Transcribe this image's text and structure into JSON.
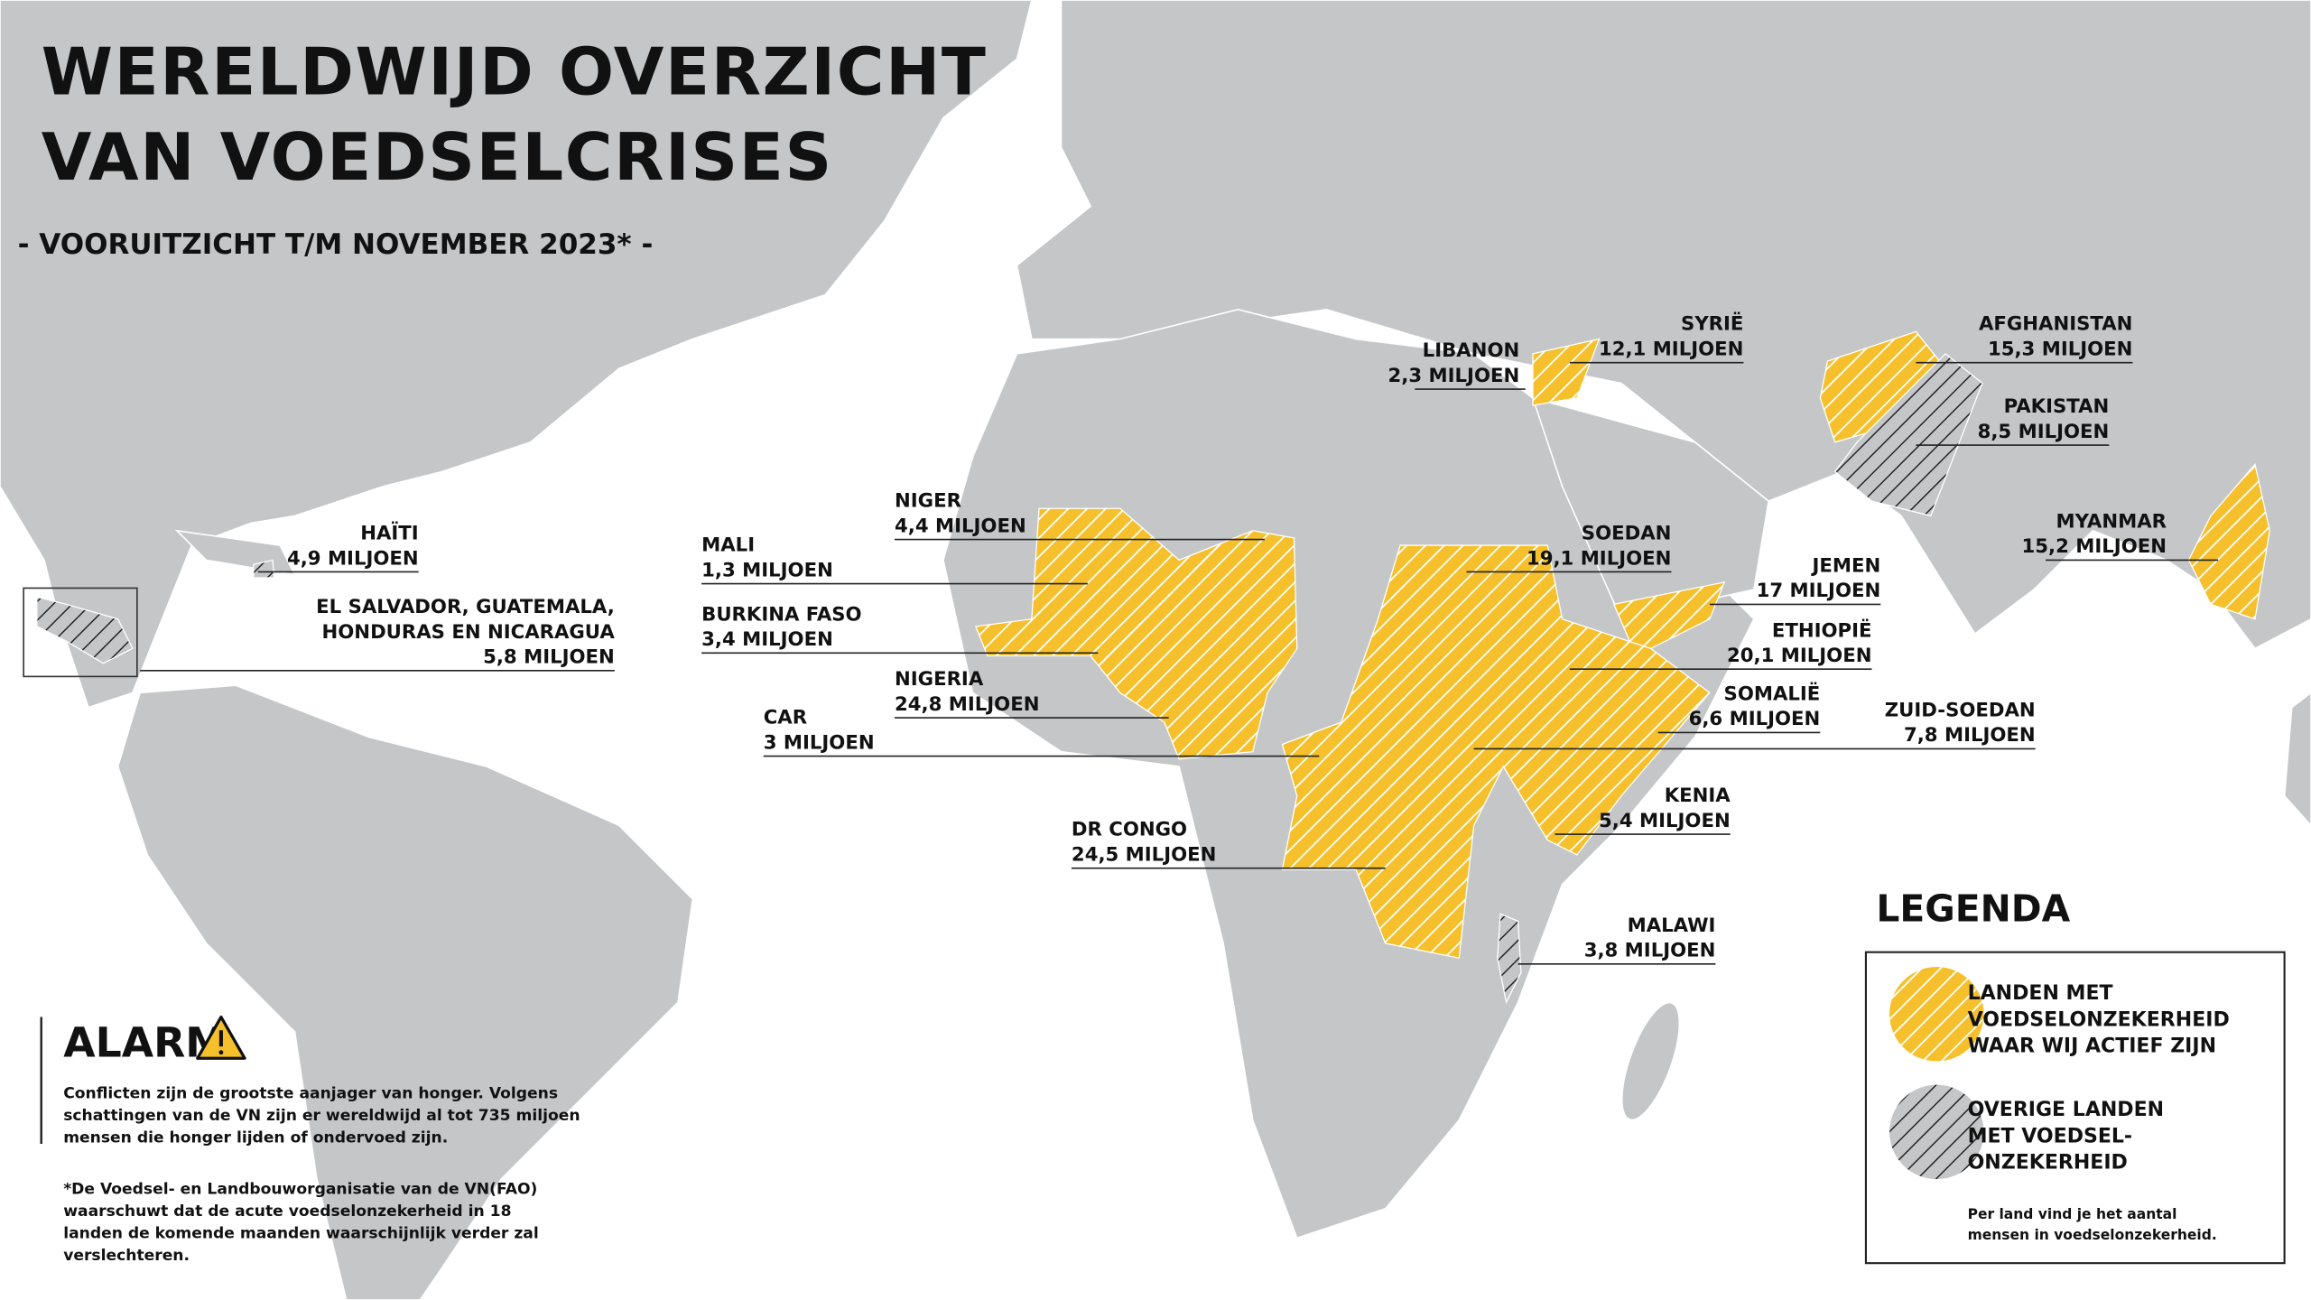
{
  "title": {
    "lines": [
      "WERELDWIJD OVERZICHT",
      "VAN VOEDSELCRISES"
    ]
  },
  "subtitle": "- VOORUITZICHT T/M NOVEMBER 2023* -",
  "countries": [
    {
      "name": [
        "HAÏTI"
      ],
      "amount": "4,9 MILJOEN"
    },
    {
      "name": [
        "EL SALVADOR, GUATEMALA,",
        "HONDURAS EN NICARAGUA"
      ],
      "amount": "5,8 MILJOEN"
    },
    {
      "name": [
        "NIGER"
      ],
      "amount": "4,4 MILJOEN"
    },
    {
      "name": [
        "MALI"
      ],
      "amount": "1,3 MILJOEN"
    },
    {
      "name": [
        "BURKINA FASO"
      ],
      "amount": "3,4 MILJOEN"
    },
    {
      "name": [
        "NIGERIA"
      ],
      "amount": "24,8 MILJOEN"
    },
    {
      "name": [
        "CAR"
      ],
      "amount": "3 MILJOEN"
    },
    {
      "name": [
        "DR CONGO"
      ],
      "amount": "24,5 MILJOEN"
    },
    {
      "name": [
        "LIBANON"
      ],
      "amount": "2,3 MILJOEN"
    },
    {
      "name": [
        "SYRIË"
      ],
      "amount": "12,1 MILJOEN"
    },
    {
      "name": [
        "AFGHANISTAN"
      ],
      "amount": "15,3 MILJOEN"
    },
    {
      "name": [
        "PAKISTAN"
      ],
      "amount": "8,5 MILJOEN"
    },
    {
      "name": [
        "MYANMAR"
      ],
      "amount": "15,2 MILJOEN"
    },
    {
      "name": [
        "SOEDAN"
      ],
      "amount": "19,1 MILJOEN"
    },
    {
      "name": [
        "JEMEN"
      ],
      "amount": "17 MILJOEN"
    },
    {
      "name": [
        "ETHIOPIË"
      ],
      "amount": "20,1 MILJOEN"
    },
    {
      "name": [
        "SOMALIË"
      ],
      "amount": "6,6 MILJOEN"
    },
    {
      "name": [
        "ZUID-SOEDAN"
      ],
      "amount": "7,8 MILJOEN"
    },
    {
      "name": [
        "KENIA"
      ],
      "amount": "5,4 MILJOEN"
    },
    {
      "name": [
        "MALAWI"
      ],
      "amount": "3,8 MILJOEN"
    }
  ],
  "alarm": {
    "heading": "ALARM",
    "body": [
      "Conflicten zijn de grootste aanjager van honger. Volgens",
      "schattingen van de VN zijn er wereldwijd al tot 735 miljoen",
      "mensen die honger lijden of ondervoed zijn."
    ]
  },
  "footnote": [
    "*De Voedsel- en Landbouworganisatie van de VN(FAO)",
    "waarschuwt dat de acute voedselonzekerheid in 18",
    "landen de komende maanden waarschijnlijk verder zal",
    "verslechteren."
  ],
  "legend": {
    "title": "LEGENDA",
    "active": [
      "LANDEN MET",
      "VOEDSELONZEKERHEID",
      "WAAR WIJ ACTIEF ZIJN"
    ],
    "other": [
      "OVERIGE LANDEN",
      "MET VOEDSEL-",
      "ONZEKERHEID"
    ],
    "note": [
      "Per land vind je het aantal",
      "mensen in voedselonzekerheid."
    ]
  }
}
